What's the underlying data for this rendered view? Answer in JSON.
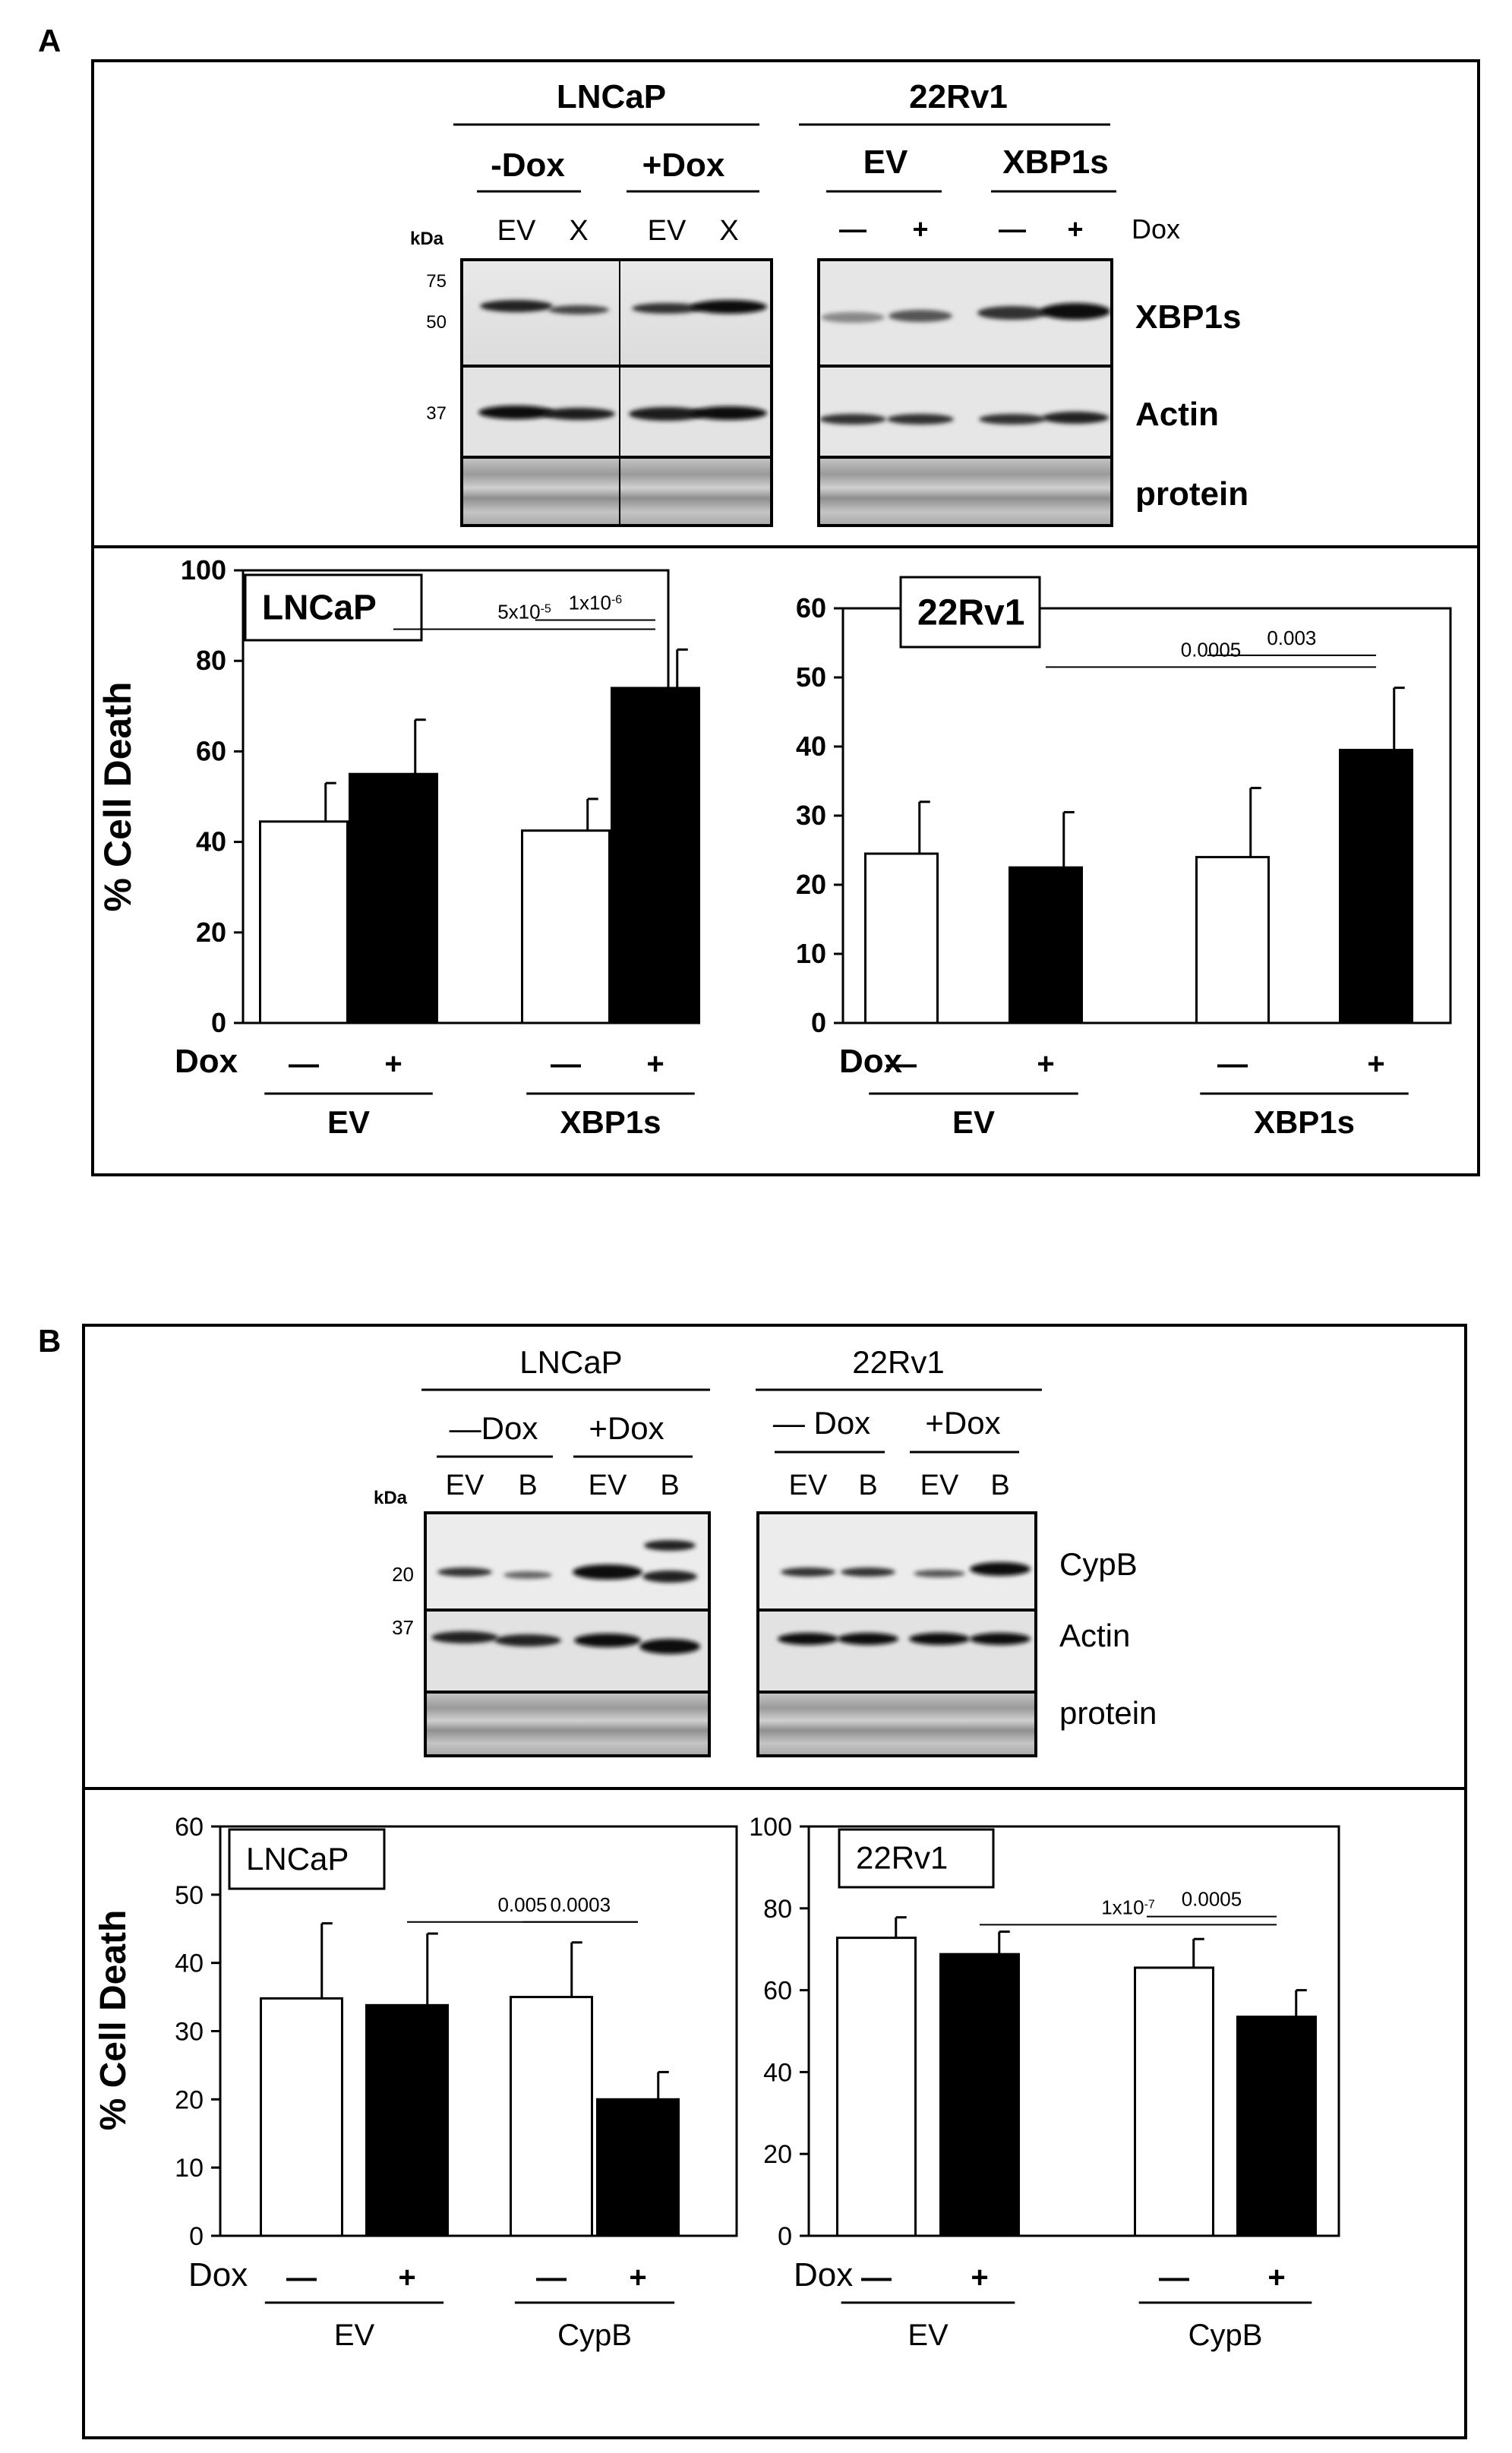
{
  "panels": [
    {
      "letter": "A",
      "blot_left": {
        "cell_line": "LNCaP",
        "groups": [
          "-Dox",
          "+Dox"
        ],
        "lanes": [
          "EV",
          "X",
          "EV",
          "X"
        ],
        "kda_title": "kDa",
        "markers": [
          "75",
          "50",
          "37"
        ]
      },
      "blot_right": {
        "cell_line": "22Rv1",
        "groups": [
          "EV",
          "XBP1s"
        ],
        "lanes": [
          "—",
          "+",
          "—",
          "+"
        ],
        "lane_header": "Dox"
      },
      "row_labels": [
        "XBP1s",
        "Actin",
        "protein"
      ]
    },
    {
      "letter": "B",
      "blot_left": {
        "cell_line": "LNCaP",
        "groups": [
          "—Dox",
          "+Dox"
        ],
        "lanes": [
          "EV",
          "B",
          "EV",
          "B"
        ],
        "kda_title": "kDa",
        "markers": [
          "20",
          "37"
        ]
      },
      "blot_right": {
        "cell_line": "22Rv1",
        "groups": [
          "— Dox",
          "+Dox"
        ],
        "lanes": [
          "EV",
          "B",
          "EV",
          "B"
        ]
      },
      "row_labels": [
        "CypB",
        "Actin",
        "protein"
      ]
    }
  ],
  "chart_data": [
    {
      "type": "bar",
      "panel": "A",
      "inset_label": "LNCaP",
      "ylabel": "% Cell Death",
      "ylim": [
        0,
        100
      ],
      "yticks": [
        "0",
        "20",
        "40",
        "60",
        "80",
        "100"
      ],
      "dox_label": "Dox",
      "dox_marks": [
        "—",
        "+",
        "—",
        "+"
      ],
      "groups": [
        "EV",
        "XBP1s"
      ],
      "values": [
        44.5,
        55,
        42.5,
        74
      ],
      "errors": [
        8.5,
        12,
        7,
        8.5
      ],
      "fills": [
        "#ffffff",
        "#000000",
        "#ffffff",
        "#000000"
      ],
      "pvalues": [
        {
          "html": "5x10<tspan baseline-shift=\"super\" font-size=\"16\">-5</tspan>",
          "text": "5x10-5",
          "from": 1,
          "to": 3,
          "y": 87
        },
        {
          "html": "1x10<tspan baseline-shift=\"super\" font-size=\"16\">-6</tspan>",
          "text": "1x10-6",
          "from": 2,
          "to": 3,
          "y": 89
        }
      ]
    },
    {
      "type": "bar",
      "panel": "A",
      "inset_label": "22Rv1",
      "ylim": [
        0,
        60
      ],
      "yticks": [
        "0",
        "10",
        "20",
        "30",
        "40",
        "50",
        "60"
      ],
      "dox_label": "Dox",
      "dox_marks": [
        "—",
        "+",
        "—",
        "+"
      ],
      "groups": [
        "EV",
        "XBP1s"
      ],
      "values": [
        24.5,
        22.5,
        24,
        39.5
      ],
      "errors": [
        7.5,
        8,
        10,
        9
      ],
      "fills": [
        "#ffffff",
        "#000000",
        "#ffffff",
        "#000000"
      ],
      "pvalues": [
        {
          "text": "0.0005",
          "from": 1,
          "to": 3,
          "y": 51.5
        },
        {
          "text": "0.003",
          "from": 2,
          "to": 3,
          "y": 53.2
        }
      ]
    },
    {
      "type": "bar",
      "panel": "B",
      "inset_label": "LNCaP",
      "ylabel": "% Cell Death",
      "ylim": [
        0,
        60
      ],
      "yticks": [
        "0",
        "10",
        "20",
        "30",
        "40",
        "50",
        "60"
      ],
      "dox_label": "Dox",
      "dox_marks": [
        "—",
        "+",
        "—",
        "+"
      ],
      "groups": [
        "EV",
        "CypB"
      ],
      "values": [
        34.8,
        33.8,
        35,
        20
      ],
      "errors": [
        11,
        10.5,
        8,
        4
      ],
      "fills": [
        "#ffffff",
        "#000000",
        "#ffffff",
        "#000000"
      ],
      "pvalues": [
        {
          "text": "0.005",
          "from": 1,
          "to": 3,
          "y": 46
        },
        {
          "text": "0.0003",
          "from": 2,
          "to": 3,
          "y": 46
        }
      ]
    },
    {
      "type": "bar",
      "panel": "B",
      "inset_label": "22Rv1",
      "ylim": [
        0,
        100
      ],
      "yticks": [
        "0",
        "20",
        "40",
        "60",
        "80",
        "100"
      ],
      "dox_label": "Dox",
      "dox_marks": [
        "—",
        "+",
        "—",
        "+"
      ],
      "groups": [
        "EV",
        "CypB"
      ],
      "values": [
        72.8,
        68.8,
        65.5,
        53.5
      ],
      "errors": [
        5,
        5.5,
        7,
        6.5
      ],
      "fills": [
        "#ffffff",
        "#000000",
        "#ffffff",
        "#000000"
      ],
      "pvalues": [
        {
          "html": "1x10<tspan baseline-shift=\"super\" font-size=\"16\">-7</tspan>",
          "text": "1x10-7",
          "from": 1,
          "to": 3,
          "y": 76
        },
        {
          "text": "0.0005",
          "from": 2,
          "to": 3,
          "y": 78
        }
      ]
    }
  ]
}
